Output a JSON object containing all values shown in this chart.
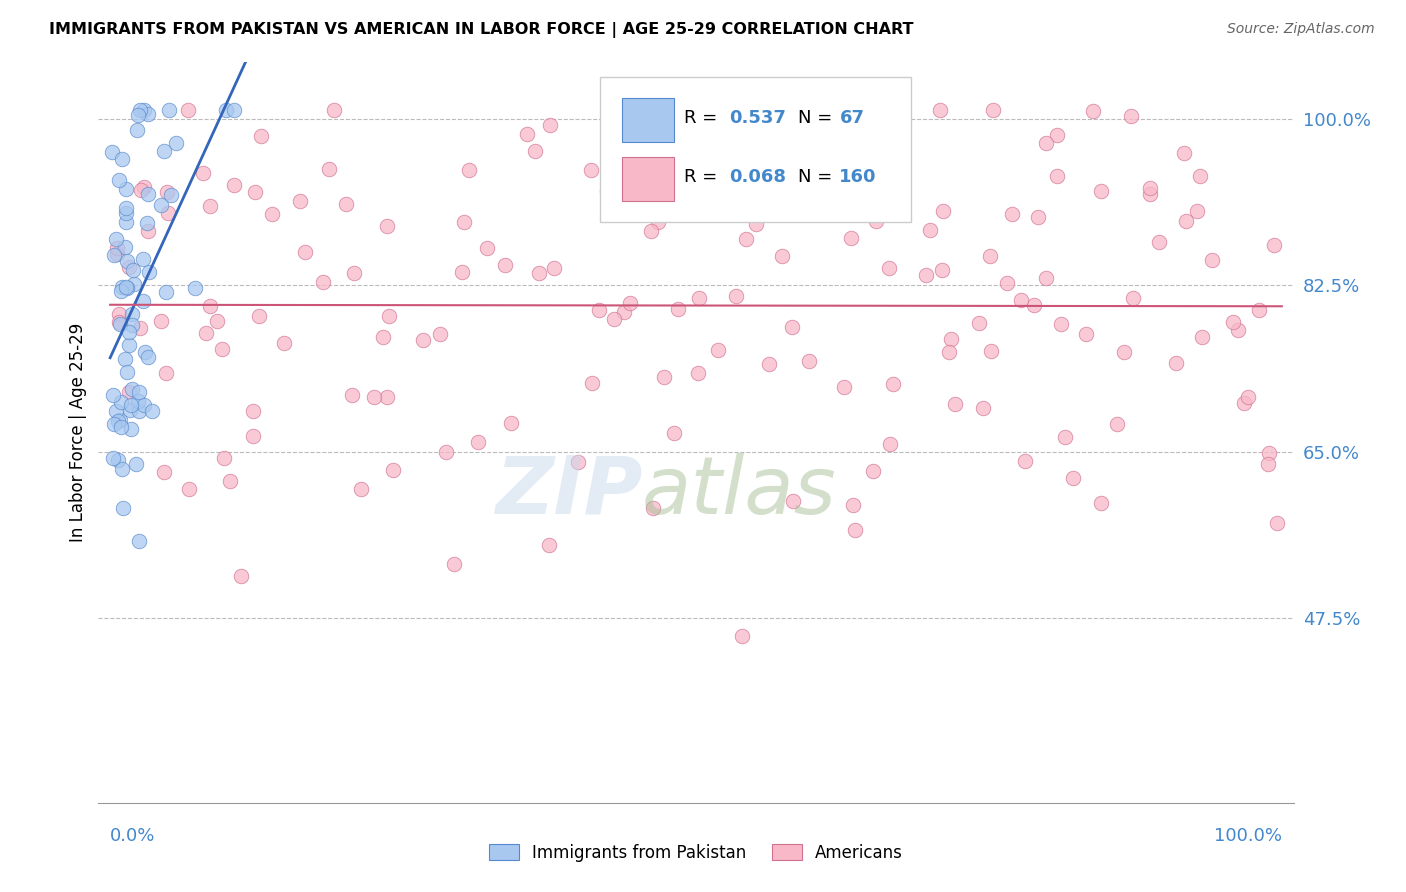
{
  "title": "IMMIGRANTS FROM PAKISTAN VS AMERICAN IN LABOR FORCE | AGE 25-29 CORRELATION CHART",
  "source": "Source: ZipAtlas.com",
  "ylabel": "In Labor Force | Age 25-29",
  "blue_color": "#a8c8f0",
  "blue_edge_color": "#5588cc",
  "pink_color": "#f8b8c8",
  "pink_edge_color": "#d07090",
  "blue_line_color": "#3366bb",
  "pink_line_color": "#cc5577",
  "legend_blue_R": "0.537",
  "legend_blue_N": "67",
  "legend_pink_R": "0.068",
  "legend_pink_N": "160",
  "tick_color": "#4488cc",
  "ytick_vals": [
    0.475,
    0.65,
    0.825,
    1.0
  ],
  "ytick_labels": [
    "47.5%",
    "65.0%",
    "82.5%",
    "100.0%"
  ],
  "ymin": 0.28,
  "ymax": 1.06,
  "xmin": 0.0,
  "xmax": 1.0,
  "dashed_line_color": "#bbbbbb",
  "watermark_zip_color": "#c8d8e8",
  "watermark_atlas_color": "#b0c8a0"
}
